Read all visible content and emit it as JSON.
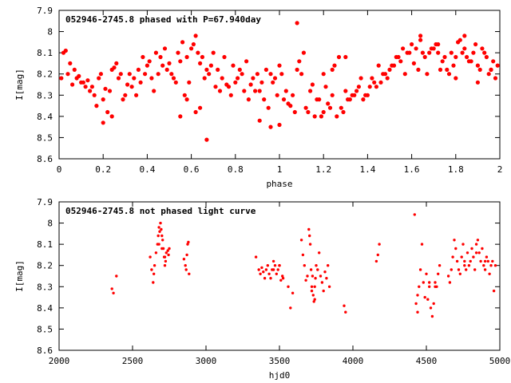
{
  "chart_data": [
    {
      "type": "scatter",
      "title": "052946-2745.8 phased with P=67.940day",
      "xlabel": "phase",
      "ylabel": "I[mag]",
      "xlim": [
        0,
        2
      ],
      "ylim": [
        7.9,
        8.6
      ],
      "y_inverted": true,
      "xticks": [
        0,
        0.2,
        0.4,
        0.6,
        0.8,
        1,
        1.2,
        1.4,
        1.6,
        1.8,
        2
      ],
      "xtick_labels": [
        "0",
        "0.2",
        "0.4",
        "0.6",
        "0.8",
        "1",
        "1.2",
        "1.4",
        "1.6",
        "1.8",
        "2"
      ],
      "yticks": [
        7.9,
        8.0,
        8.1,
        8.2,
        8.3,
        8.4,
        8.5,
        8.6
      ],
      "ytick_labels": [
        "7.9",
        "8",
        "8.1",
        "8.2",
        "8.3",
        "8.4",
        "8.5",
        "8.6"
      ],
      "grid": false,
      "marker_color": "#ff0000",
      "series": [
        {
          "x": [
            0.02,
            0.04,
            0.06,
            0.08,
            0.1,
            0.12,
            0.14,
            0.16,
            0.18,
            0.2,
            0.22,
            0.24,
            0.26,
            0.28,
            0.3,
            0.32,
            0.34,
            0.36,
            0.38,
            0.4,
            0.42,
            0.44,
            0.46,
            0.48,
            0.5,
            0.52,
            0.54,
            0.56,
            0.58,
            0.6,
            0.62,
            0.64,
            0.66,
            0.68,
            0.7,
            0.72,
            0.74,
            0.76,
            0.78,
            0.8,
            0.82,
            0.84,
            0.86,
            0.88,
            0.9,
            0.92,
            0.94,
            0.96,
            0.98,
            1.0,
            0.03,
            0.07,
            0.11,
            0.15,
            0.19,
            0.23,
            0.27,
            0.31,
            0.35,
            0.39,
            0.43,
            0.47,
            0.51,
            0.55,
            0.59,
            0.63,
            0.67,
            0.71,
            0.75,
            0.79,
            0.83,
            0.87,
            0.91,
            0.95,
            0.99,
            0.01,
            0.05,
            0.09,
            0.13,
            0.17,
            0.21,
            0.25,
            0.29,
            0.33,
            0.37,
            0.41,
            0.45,
            0.49,
            0.53,
            0.57,
            0.61,
            0.65,
            0.69,
            0.73,
            0.77,
            0.81,
            0.85,
            0.89,
            0.93,
            0.97,
            0.2,
            0.24,
            0.55,
            0.62,
            0.67,
            0.91,
            0.96,
            1.0,
            0.58,
            0.64,
            1.02,
            1.04,
            1.06,
            1.08,
            1.1,
            1.12,
            1.14,
            1.16,
            1.18,
            1.2,
            1.22,
            1.24,
            1.26,
            1.28,
            1.3,
            1.32,
            1.34,
            1.36,
            1.38,
            1.4,
            1.42,
            1.44,
            1.46,
            1.48,
            1.5,
            1.52,
            1.54,
            1.56,
            1.58,
            1.6,
            1.62,
            1.64,
            1.66,
            1.68,
            1.7,
            1.72,
            1.74,
            1.76,
            1.78,
            1.8,
            1.82,
            1.84,
            1.86,
            1.88,
            1.9,
            1.92,
            1.94,
            1.96,
            1.98,
            1.03,
            1.07,
            1.11,
            1.15,
            1.19,
            1.23,
            1.27,
            1.31,
            1.35,
            1.39,
            1.43,
            1.47,
            1.51,
            1.55,
            1.59,
            1.63,
            1.67,
            1.71,
            1.75,
            1.79,
            1.83,
            1.87,
            1.91,
            1.95,
            1.99,
            1.01,
            1.05,
            1.09,
            1.13,
            1.17,
            1.21,
            1.25,
            1.29,
            1.33,
            1.37,
            1.41,
            1.45,
            1.49,
            1.53,
            1.57,
            1.61,
            1.65,
            1.69,
            1.73,
            1.77,
            1.81,
            1.85,
            1.89,
            1.93,
            1.97,
            1.08,
            1.2,
            1.24,
            1.3,
            1.64,
            1.72,
            1.8,
            1.84,
            1.9,
            1.96
          ],
          "y": [
            8.1,
            8.2,
            8.25,
            8.22,
            8.24,
            8.26,
            8.28,
            8.3,
            8.22,
            8.32,
            8.38,
            8.18,
            8.15,
            8.2,
            8.3,
            8.2,
            8.22,
            8.18,
            8.12,
            8.16,
            8.22,
            8.1,
            8.12,
            8.08,
            8.15,
            8.22,
            8.1,
            8.05,
            8.12,
            8.08,
            8.02,
            8.15,
            8.22,
            8.2,
            8.1,
            8.18,
            8.22,
            8.25,
            8.3,
            8.24,
            8.18,
            8.28,
            8.32,
            8.22,
            8.2,
            8.24,
            8.18,
            8.2,
            8.22,
            8.16,
            8.09,
            8.18,
            8.24,
            8.26,
            8.2,
            8.28,
            8.22,
            8.25,
            8.3,
            8.2,
            8.28,
            8.16,
            8.2,
            8.14,
            8.24,
            8.1,
            8.18,
            8.26,
            8.12,
            8.16,
            8.2,
            8.25,
            8.28,
            8.36,
            8.3,
            8.22,
            8.15,
            8.21,
            8.23,
            8.35,
            8.27,
            8.17,
            8.32,
            8.26,
            8.24,
            8.14,
            8.2,
            8.18,
            8.24,
            8.3,
            8.06,
            8.12,
            8.16,
            8.28,
            8.26,
            8.22,
            8.14,
            8.28,
            8.32,
            8.24,
            8.43,
            8.4,
            8.4,
            8.38,
            8.51,
            8.42,
            8.45,
            8.44,
            8.32,
            8.36,
            8.32,
            8.34,
            8.3,
            8.18,
            8.2,
            8.36,
            8.28,
            8.4,
            8.32,
            8.38,
            8.34,
            8.3,
            8.4,
            8.36,
            8.28,
            8.32,
            8.3,
            8.26,
            8.32,
            8.3,
            8.22,
            8.26,
            8.24,
            8.2,
            8.18,
            8.16,
            8.12,
            8.08,
            8.1,
            8.06,
            8.08,
            8.04,
            8.12,
            8.1,
            8.08,
            8.06,
            8.14,
            8.18,
            8.1,
            8.12,
            8.04,
            8.08,
            8.14,
            8.1,
            8.16,
            8.08,
            8.12,
            8.18,
            8.22,
            8.28,
            8.38,
            8.1,
            8.25,
            8.4,
            8.36,
            8.12,
            8.32,
            8.28,
            8.3,
            8.24,
            8.2,
            8.16,
            8.14,
            8.1,
            8.18,
            8.2,
            8.06,
            8.12,
            8.16,
            8.1,
            8.14,
            8.18,
            8.2,
            8.16,
            8.2,
            8.35,
            8.14,
            8.38,
            8.32,
            8.26,
            8.16,
            8.38,
            8.3,
            8.22,
            8.26,
            8.16,
            8.22,
            8.12,
            8.2,
            8.15,
            8.1,
            8.08,
            8.18,
            8.2,
            8.05,
            8.12,
            8.06,
            8.1,
            8.14,
            7.96,
            8.2,
            8.18,
            8.12,
            8.02,
            8.1,
            8.22,
            8.02,
            8.24,
            8.18
          ]
        }
      ]
    },
    {
      "type": "scatter",
      "title": "052946-2745.8 not phased light curve",
      "xlabel": "hjd0",
      "ylabel": "I[mag]",
      "xlim": [
        2000,
        5000
      ],
      "ylim": [
        7.9,
        8.6
      ],
      "y_inverted": true,
      "xticks": [
        2000,
        2500,
        3000,
        3500,
        4000,
        4500,
        5000
      ],
      "xtick_labels": [
        "2000",
        "2500",
        "3000",
        "3500",
        "4000",
        "4500",
        "5000"
      ],
      "yticks": [
        7.9,
        8.0,
        8.1,
        8.2,
        8.3,
        8.4,
        8.5,
        8.6
      ],
      "ytick_labels": [
        "7.9",
        "8",
        "8.1",
        "8.2",
        "8.3",
        "8.4",
        "8.5",
        "8.6"
      ],
      "grid": false,
      "marker_color": "#ff0000",
      "series": [
        {
          "x": [
            2360,
            2370,
            2390,
            2620,
            2630,
            2640,
            2645,
            2650,
            2660,
            2670,
            2675,
            2680,
            2685,
            2690,
            2695,
            2700,
            2705,
            2710,
            2715,
            2720,
            2725,
            2730,
            2740,
            2745,
            2750,
            2850,
            2860,
            2865,
            2870,
            2875,
            2880,
            2885,
            3340,
            3360,
            3370,
            3380,
            3390,
            3400,
            3410,
            3420,
            3430,
            3440,
            3450,
            3460,
            3470,
            3480,
            3490,
            3500,
            3510,
            3520,
            3525,
            3560,
            3575,
            3590,
            3650,
            3660,
            3670,
            3680,
            3690,
            3700,
            3705,
            3710,
            3715,
            3720,
            3725,
            3730,
            3735,
            3740,
            3745,
            3750,
            3760,
            3770,
            3780,
            3790,
            3800,
            3810,
            3820,
            3830,
            3840,
            3940,
            3950,
            4160,
            4170,
            4180,
            4420,
            4430,
            4440,
            4450,
            4460,
            4470,
            4480,
            4490,
            4500,
            4510,
            4520,
            4530,
            4540,
            4550,
            4560,
            4570,
            4580,
            4590,
            4650,
            4660,
            4670,
            4680,
            4690,
            4700,
            4710,
            4720,
            4730,
            4740,
            4750,
            4760,
            4770,
            4780,
            4790,
            4800,
            4810,
            4820,
            4830,
            4840,
            4850,
            4860,
            4870,
            4880,
            4890,
            4900,
            4910,
            4920,
            4930,
            4940,
            4950,
            4960,
            4970,
            2680,
            2700,
            2720,
            3460,
            3500,
            3720,
            3740,
            4440,
            4520,
            4560,
            4760,
            4840,
            4900
          ],
          "y": [
            8.31,
            8.33,
            8.25,
            8.16,
            8.22,
            8.28,
            8.24,
            8.2,
            8.14,
            8.1,
            8.06,
            8.02,
            8.04,
            8.0,
            8.03,
            8.06,
            8.08,
            8.12,
            8.16,
            8.2,
            8.18,
            8.14,
            8.13,
            8.15,
            8.12,
            8.17,
            8.2,
            8.22,
            8.15,
            8.1,
            8.09,
            8.24,
            8.16,
            8.22,
            8.24,
            8.21,
            8.23,
            8.26,
            8.22,
            8.2,
            8.24,
            8.26,
            8.22,
            8.18,
            8.2,
            8.24,
            8.22,
            8.2,
            8.27,
            8.25,
            8.26,
            8.3,
            8.4,
            8.33,
            8.08,
            8.15,
            8.2,
            8.27,
            8.25,
            8.03,
            8.06,
            8.1,
            8.22,
            8.3,
            8.25,
            8.34,
            8.37,
            8.3,
            8.26,
            8.2,
            8.22,
            8.14,
            8.25,
            8.28,
            8.32,
            8.23,
            8.26,
            8.2,
            8.3,
            8.39,
            8.42,
            8.18,
            8.15,
            8.1,
            7.96,
            8.38,
            8.42,
            8.3,
            8.22,
            8.1,
            8.28,
            8.35,
            8.24,
            8.36,
            8.3,
            8.4,
            8.44,
            8.38,
            8.28,
            8.3,
            8.24,
            8.2,
            8.25,
            8.28,
            8.22,
            8.16,
            8.08,
            8.12,
            8.18,
            8.22,
            8.24,
            8.16,
            8.1,
            8.18,
            8.22,
            8.14,
            8.2,
            8.18,
            8.12,
            8.16,
            8.22,
            8.1,
            8.08,
            8.14,
            8.18,
            8.12,
            8.2,
            8.22,
            8.16,
            8.18,
            8.24,
            8.2,
            8.18,
            8.32,
            8.2,
            8.1,
            8.12,
            8.16,
            8.22,
            8.2,
            8.32,
            8.36,
            8.34,
            8.28,
            8.3,
            8.2,
            8.14,
            8.18
          ]
        }
      ]
    }
  ]
}
